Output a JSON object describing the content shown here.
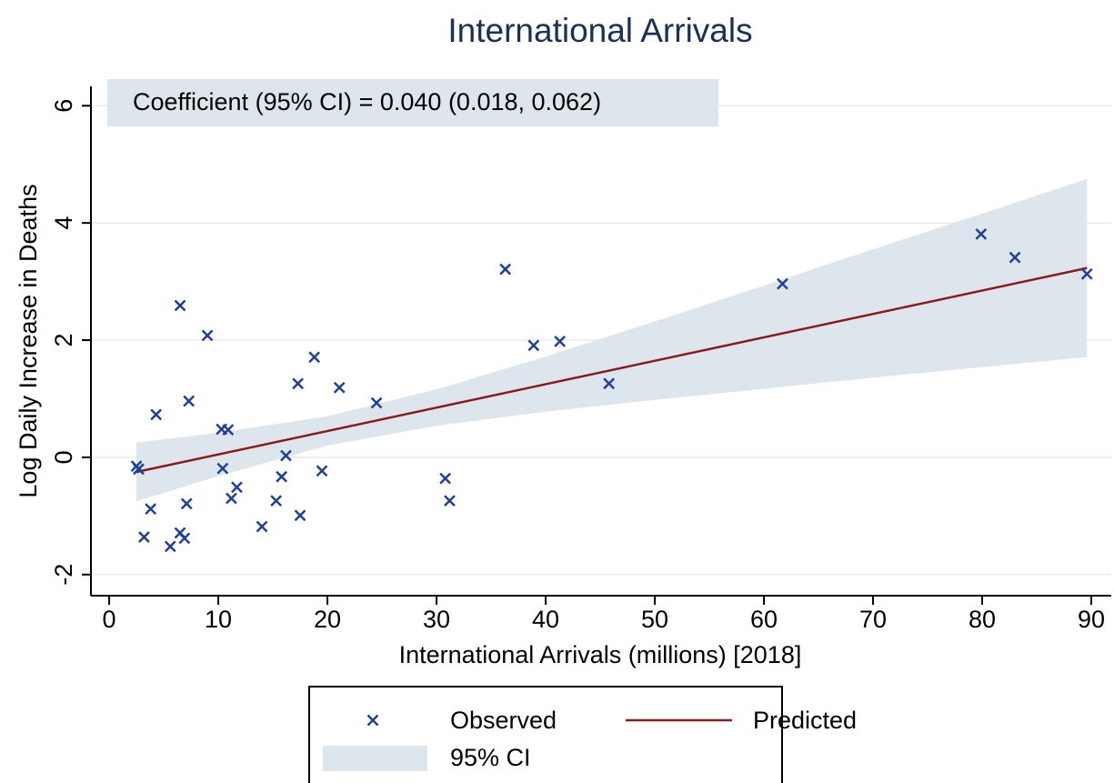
{
  "chart_data": {
    "type": "scatter",
    "title": "International Arrivals",
    "xlabel": "International Arrivals (millions) [2018]",
    "ylabel": "Log Daily Increase in Deaths",
    "annotation": "Coefficient (95% CI) = 0.040 (0.018, 0.062)",
    "xlim": [
      -1.67,
      91.83
    ],
    "ylim": [
      -2.36,
      6.33
    ],
    "xticks": [
      0,
      10,
      20,
      30,
      40,
      50,
      60,
      70,
      80,
      90
    ],
    "yticks": [
      -2,
      0,
      2,
      4,
      6
    ],
    "grid": true,
    "legend_position": "bottom",
    "band": {
      "name": "95% CI",
      "color": "#dce6ec",
      "x": [
        2.5,
        10,
        20,
        30,
        40,
        50,
        60,
        70,
        80,
        89.6
      ],
      "lower": [
        -0.75,
        -0.32,
        0.2,
        0.54,
        0.78,
        0.98,
        1.17,
        1.36,
        1.54,
        1.71
      ],
      "upper": [
        0.25,
        0.42,
        0.7,
        1.16,
        1.72,
        2.32,
        2.93,
        3.55,
        4.16,
        4.75
      ]
    },
    "series": [
      {
        "name": "Observed",
        "type": "scatter",
        "color": "#1f3f99",
        "x": [
          2.5,
          2.7,
          3.2,
          3.8,
          4.3,
          5.6,
          6.5,
          6.5,
          6.9,
          7.1,
          7.3,
          9.0,
          10.3,
          10.4,
          10.9,
          11.2,
          11.7,
          14.0,
          15.3,
          15.8,
          16.2,
          17.3,
          17.5,
          18.8,
          19.5,
          21.1,
          24.5,
          30.8,
          31.2,
          36.3,
          38.9,
          41.3,
          45.8,
          61.7,
          79.9,
          83.0,
          89.6
        ],
        "values": [
          -0.15,
          -0.2,
          -1.36,
          -0.88,
          0.73,
          -1.52,
          2.59,
          -1.29,
          -1.38,
          -0.79,
          0.96,
          2.08,
          0.48,
          -0.19,
          0.47,
          -0.7,
          -0.51,
          -1.18,
          -0.74,
          -0.33,
          0.03,
          1.26,
          -0.99,
          1.71,
          -0.23,
          1.19,
          0.93,
          -0.36,
          -0.74,
          3.21,
          1.91,
          1.98,
          1.26,
          2.96,
          3.81,
          3.41,
          3.13
        ]
      },
      {
        "name": "Predicted",
        "type": "line",
        "color": "#8b1a1a",
        "x": [
          2.5,
          89.6
        ],
        "values": [
          -0.25,
          3.23
        ]
      }
    ]
  }
}
